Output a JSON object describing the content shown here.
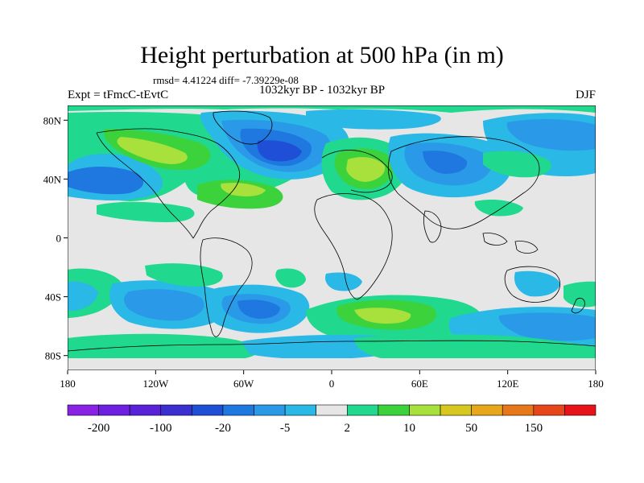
{
  "title": "Height perturbation at 500 hPa (in m)",
  "stats": "rmsd= 4.41224 diff= -7.39229e-08",
  "left_label": "Expt = tFmcC-tEvtC",
  "center_label": "1032kyr BP - 1032kyr BP",
  "right_label": "DJF",
  "lat_ticks": [
    "80N",
    "40N",
    "0",
    "40S",
    "80S"
  ],
  "lat_values": [
    80,
    40,
    0,
    -40,
    -80
  ],
  "lon_ticks": [
    "180",
    "120W",
    "60W",
    "0",
    "60E",
    "120E",
    "180"
  ],
  "lon_values": [
    -180,
    -120,
    -60,
    0,
    60,
    120,
    180
  ],
  "colorbar": {
    "colors": [
      "#8a22e6",
      "#6f1fe0",
      "#5a22d8",
      "#3c2fd0",
      "#1f4fd6",
      "#1f78e0",
      "#2a9ae8",
      "#2ab8e6",
      "#e6e6e6",
      "#20d88e",
      "#3cd23c",
      "#a8e03c",
      "#d6c81e",
      "#e6a81a",
      "#e6781a",
      "#e6461a",
      "#e6141a"
    ],
    "labels": [
      "-200",
      "-100",
      "-20",
      "-5",
      "2",
      "10",
      "50",
      "150"
    ]
  },
  "map_colors": {
    "background": "#e6e6e6",
    "land_outline": "#000000"
  }
}
